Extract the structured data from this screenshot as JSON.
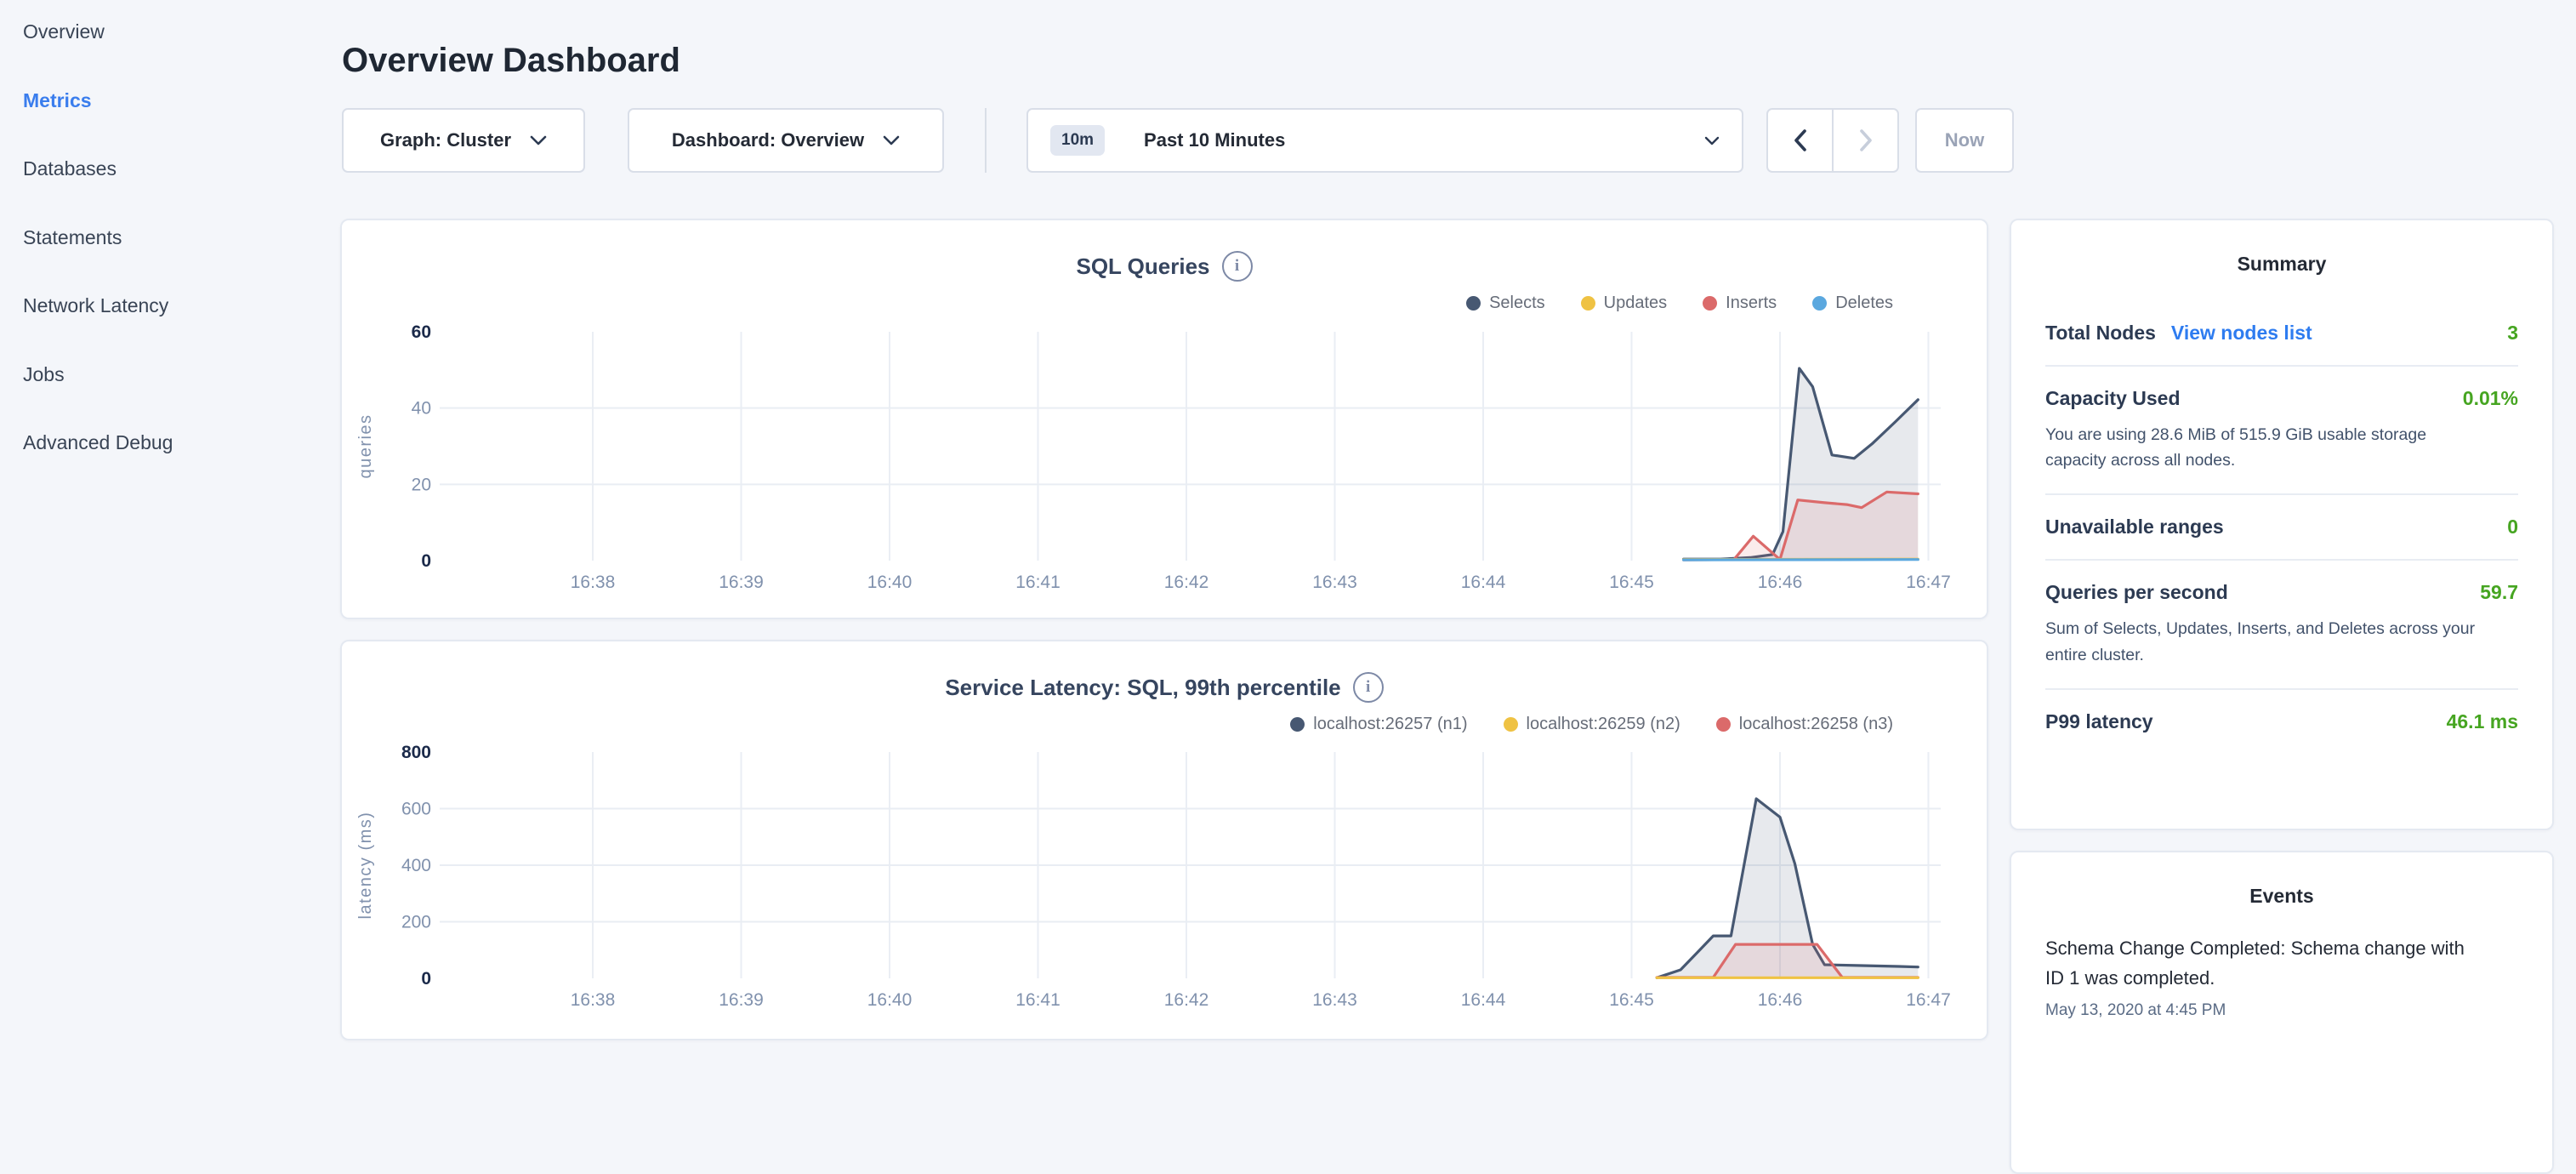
{
  "sidebar": {
    "items": [
      {
        "label": "Overview",
        "active": false
      },
      {
        "label": "Metrics",
        "active": true
      },
      {
        "label": "Databases",
        "active": false
      },
      {
        "label": "Statements",
        "active": false
      },
      {
        "label": "Network Latency",
        "active": false
      },
      {
        "label": "Jobs",
        "active": false
      },
      {
        "label": "Advanced Debug",
        "active": false
      }
    ]
  },
  "header": {
    "title": "Overview Dashboard"
  },
  "toolbar": {
    "graph_dropdown": {
      "label": "Graph: Cluster"
    },
    "dashboard_dropdown": {
      "label": "Dashboard: Overview"
    },
    "time_picker": {
      "badge": "10m",
      "label": "Past 10 Minutes"
    },
    "prev_button": {
      "enabled": true
    },
    "next_button": {
      "enabled": false
    },
    "now_button": {
      "label": "Now",
      "enabled": false
    }
  },
  "chart_data": [
    {
      "type": "area",
      "title": "SQL Queries",
      "ylabel": "queries",
      "xlabel": "",
      "x_ticks": [
        "16:38",
        "16:39",
        "16:40",
        "16:41",
        "16:42",
        "16:43",
        "16:44",
        "16:45",
        "16:46",
        "16:47"
      ],
      "x_unit": "minutes after 16:38",
      "y_ticks": [
        0,
        20,
        40,
        60
      ],
      "ylim": [
        0,
        60
      ],
      "grid": true,
      "legend_position": "top-right",
      "series": [
        {
          "name": "Selects",
          "color": "#475872",
          "fill": "rgba(71,88,114,0.13)",
          "points": [
            [
              7.35,
              0.4
            ],
            [
              7.6,
              0.4
            ],
            [
              7.8,
              0.8
            ],
            [
              7.95,
              1.6
            ],
            [
              8.02,
              7.6
            ],
            [
              8.13,
              50.4
            ],
            [
              8.22,
              45.6
            ],
            [
              8.35,
              27.7
            ],
            [
              8.5,
              26.8
            ],
            [
              8.62,
              30.6
            ],
            [
              8.78,
              36.5
            ],
            [
              8.93,
              42.2
            ]
          ]
        },
        {
          "name": "Updates",
          "color": "#EFC243",
          "fill": "rgba(239,194,67,0.10)",
          "points": [
            [
              7.35,
              0.3
            ],
            [
              8.93,
              0.4
            ]
          ]
        },
        {
          "name": "Inserts",
          "color": "#DB6A6A",
          "fill": "rgba(219,106,106,0.13)",
          "points": [
            [
              7.35,
              0.2
            ],
            [
              7.69,
              0.3
            ],
            [
              7.82,
              6.4
            ],
            [
              8.0,
              0.3
            ],
            [
              8.12,
              15.9
            ],
            [
              8.3,
              15.2
            ],
            [
              8.45,
              14.7
            ],
            [
              8.55,
              13.9
            ],
            [
              8.72,
              18.0
            ],
            [
              8.93,
              17.5
            ]
          ]
        },
        {
          "name": "Deletes",
          "color": "#5BA8DF",
          "fill": "rgba(91,168,223,0.10)",
          "points": [
            [
              7.35,
              0.2
            ],
            [
              8.93,
              0.3
            ]
          ]
        }
      ]
    },
    {
      "type": "area",
      "title": "Service Latency: SQL, 99th percentile",
      "ylabel": "latency (ms)",
      "xlabel": "",
      "x_ticks": [
        "16:38",
        "16:39",
        "16:40",
        "16:41",
        "16:42",
        "16:43",
        "16:44",
        "16:45",
        "16:46",
        "16:47"
      ],
      "x_unit": "minutes after 16:38",
      "y_ticks": [
        0,
        200,
        400,
        600,
        800
      ],
      "ylim": [
        0,
        800
      ],
      "grid": true,
      "legend_position": "top-right",
      "series": [
        {
          "name": "localhost:26257 (n1)",
          "color": "#475872",
          "fill": "rgba(71,88,114,0.13)",
          "points": [
            [
              7.17,
              2
            ],
            [
              7.33,
              30
            ],
            [
              7.45,
              95
            ],
            [
              7.55,
              150
            ],
            [
              7.67,
              150
            ],
            [
              7.84,
              635
            ],
            [
              8.0,
              570
            ],
            [
              8.1,
              405
            ],
            [
              8.22,
              120
            ],
            [
              8.3,
              48
            ],
            [
              8.55,
              45
            ],
            [
              8.8,
              42
            ],
            [
              8.93,
              40
            ]
          ]
        },
        {
          "name": "localhost:26259 (n2)",
          "color": "#EFC243",
          "fill": "rgba(239,194,67,0.10)",
          "points": [
            [
              7.17,
              2
            ],
            [
              8.93,
              2
            ]
          ]
        },
        {
          "name": "localhost:26258 (n3)",
          "color": "#DB6A6A",
          "fill": "rgba(219,106,106,0.13)",
          "points": [
            [
              7.17,
              3
            ],
            [
              7.55,
              3
            ],
            [
              7.7,
              120
            ],
            [
              8.25,
              120
            ],
            [
              8.42,
              3
            ],
            [
              8.93,
              3
            ]
          ]
        }
      ]
    }
  ],
  "summary": {
    "title": "Summary",
    "rows": [
      {
        "label": "Total Nodes",
        "link": "View nodes list",
        "value": "3"
      },
      {
        "label": "Capacity Used",
        "value": "0.01%",
        "description": "You are using 28.6 MiB of 515.9 GiB usable storage capacity across all nodes."
      },
      {
        "label": "Unavailable ranges",
        "value": "0"
      },
      {
        "label": "Queries per second",
        "value": "59.7",
        "description": "Sum of Selects, Updates, Inserts, and Deletes across your entire cluster."
      },
      {
        "label": "P99 latency",
        "value": "46.1 ms"
      }
    ]
  },
  "events": {
    "title": "Events",
    "items": [
      {
        "text": "Schema Change Completed: Schema change with ID 1 was completed.",
        "timestamp": "May 13, 2020 at 4:45 PM"
      }
    ]
  },
  "colors": {
    "accent_blue": "#3a7ded",
    "link_blue": "#2e7cf0",
    "value_green": "#46a521",
    "series_navy": "#475872",
    "series_yellow": "#EFC243",
    "series_red": "#DB6A6A",
    "series_blue": "#5BA8DF"
  }
}
